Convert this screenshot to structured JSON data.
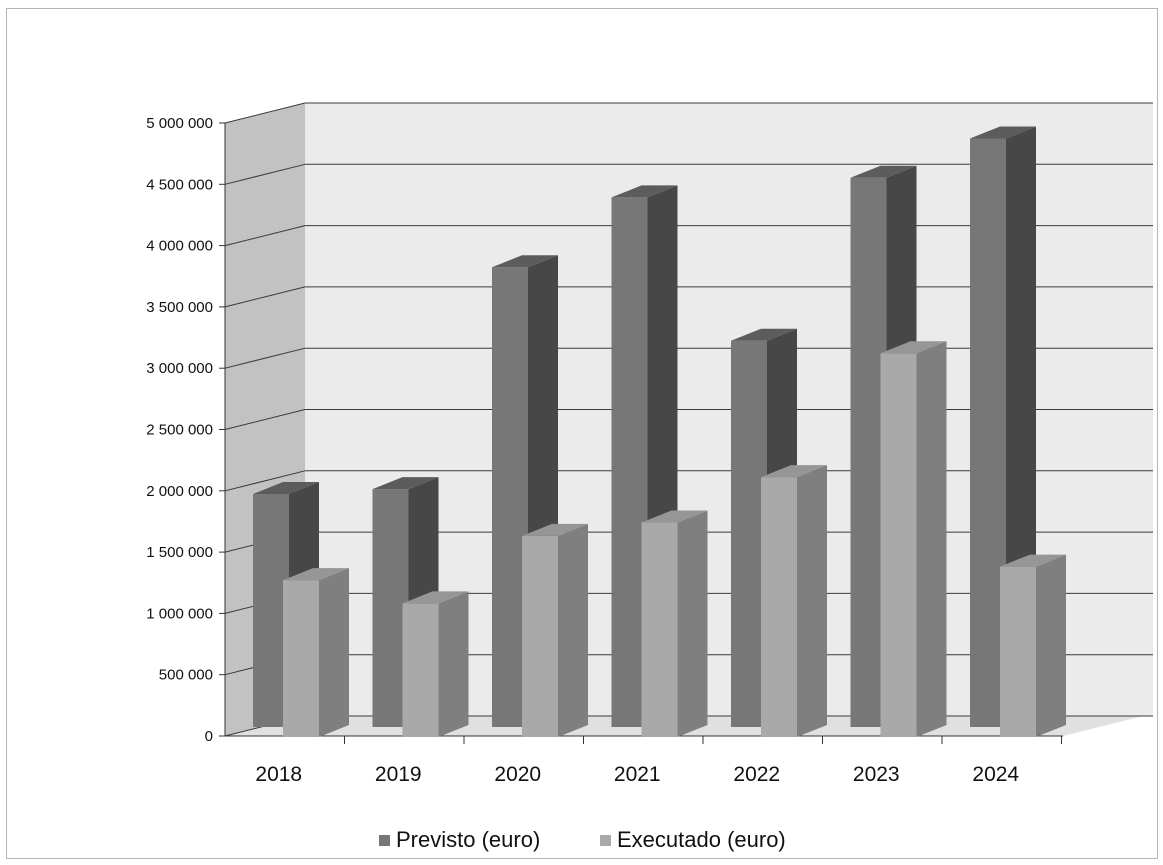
{
  "chart_data": {
    "type": "bar",
    "categories": [
      "2018",
      "2019",
      "2020",
      "2021",
      "2022",
      "2023",
      "2024"
    ],
    "series": [
      {
        "name": "Previsto (euro)",
        "values": [
          1900000,
          1940000,
          3750000,
          4320000,
          3150000,
          4480000,
          4800000
        ]
      },
      {
        "name": "Executado (euro)",
        "values": [
          1280000,
          1090000,
          1640000,
          1750000,
          2120000,
          3130000,
          1390000
        ]
      }
    ],
    "y_ticks": [
      "0",
      "500 000",
      "1 000 000",
      "1 500 000",
      "2 000 000",
      "2 500 000",
      "3 000 000",
      "3 500 000",
      "4 000 000",
      "4 500 000",
      "5 000 000"
    ],
    "ylim": [
      0,
      5000000
    ],
    "grid": true,
    "legend_position": "bottom",
    "colors": {
      "previsto_front": "#777777",
      "previsto_side": "#474747",
      "previsto_top": "#5c5c5c",
      "executado_front": "#a9a9a9",
      "executado_side": "#7f7f7f",
      "executado_top": "#969696",
      "back_wall": "#ebebeb",
      "side_wall": "#c2c2c2",
      "floor": "#e0e0e0",
      "gridline": "#3a3a3a"
    }
  }
}
